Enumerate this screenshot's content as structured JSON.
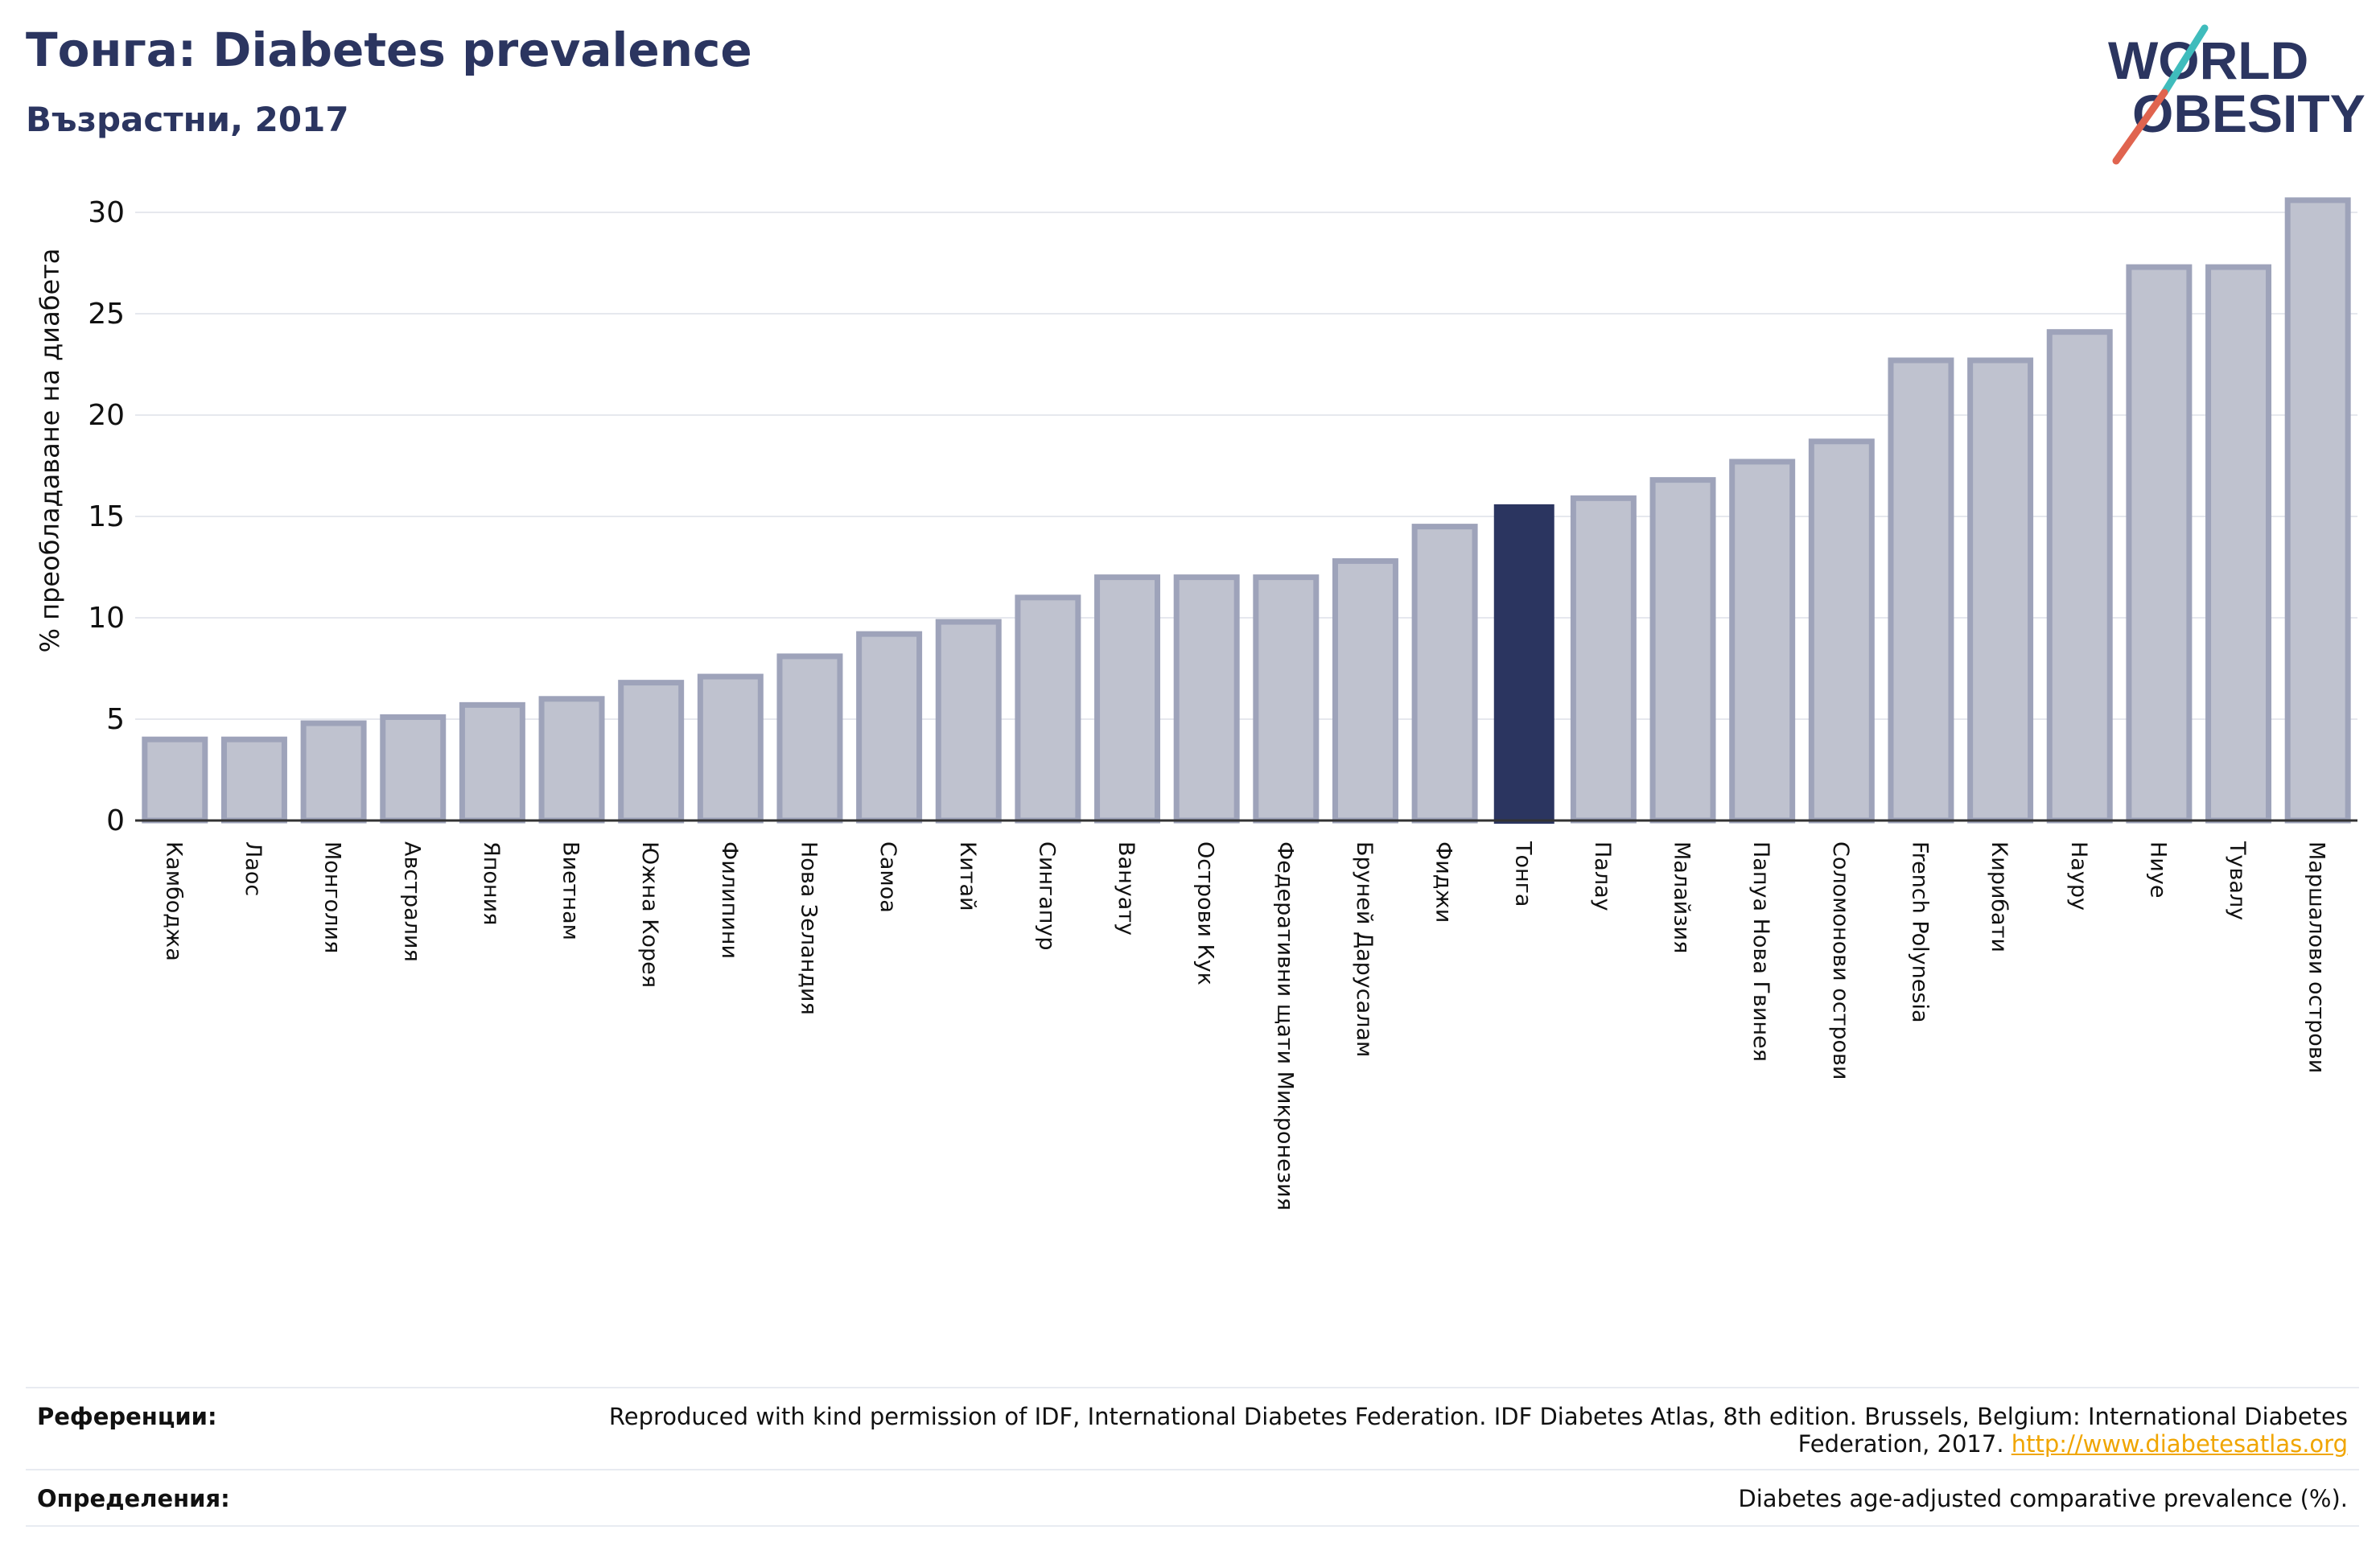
{
  "header": {
    "title": "Тонга: Diabetes prevalence",
    "subtitle": "Възрастни, 2017"
  },
  "logo": {
    "line1": "WORLD",
    "line2": "OBESITY"
  },
  "colors": {
    "bar": "#bfc2cf",
    "bar_border": "#9ea3ba",
    "highlight": "#2b3560",
    "title": "#2b3560",
    "link": "#f0a500",
    "logo_teal": "#3fbcbc",
    "logo_coral": "#e0644f"
  },
  "chart_data": {
    "type": "bar",
    "title": "Тонга: Diabetes prevalence",
    "subtitle": "Възрастни, 2017",
    "xlabel": "",
    "ylabel": "% преобладаване на диабета",
    "ylim": [
      0,
      31
    ],
    "yticks": [
      0,
      5,
      10,
      15,
      20,
      25,
      30
    ],
    "grid": true,
    "highlight": "Тонга",
    "categories": [
      "Камбоджа",
      "Лаос",
      "Монголия",
      "Австралия",
      "Япония",
      "Виетнам",
      "Южна Корея",
      "Филипини",
      "Нова Зеландия",
      "Самоа",
      "Китай",
      "Сингапур",
      "Вануату",
      "Острови Кук",
      "Федеративни щати Микронезия",
      "Бруней Дарусалам",
      "Фиджи",
      "Тонга",
      "Палау",
      "Малайзия",
      "Папуа Нова Гвинея",
      "Соломонови острови",
      "French Polynesia",
      "Кирибати",
      "Науру",
      "Ниуе",
      "Тувалу",
      "Маршалови острови"
    ],
    "values": [
      4.0,
      4.0,
      4.8,
      5.1,
      5.7,
      6.0,
      6.8,
      7.1,
      8.1,
      9.2,
      9.8,
      11.0,
      12.0,
      12.0,
      12.0,
      12.8,
      14.5,
      15.6,
      15.9,
      16.8,
      17.7,
      18.7,
      22.7,
      22.7,
      24.1,
      27.3,
      27.3,
      30.6
    ]
  },
  "footer": {
    "references_label": "Референции:",
    "references_text": "Reproduced with kind permission of IDF, International Diabetes Federation. IDF Diabetes Atlas, 8th edition. Brussels, Belgium: International Diabetes Federation, 2017.",
    "references_link": "http://www.diabetesatlas.org",
    "definitions_label": "Определения:",
    "definitions_text": "Diabetes age-adjusted comparative prevalence (%)."
  }
}
